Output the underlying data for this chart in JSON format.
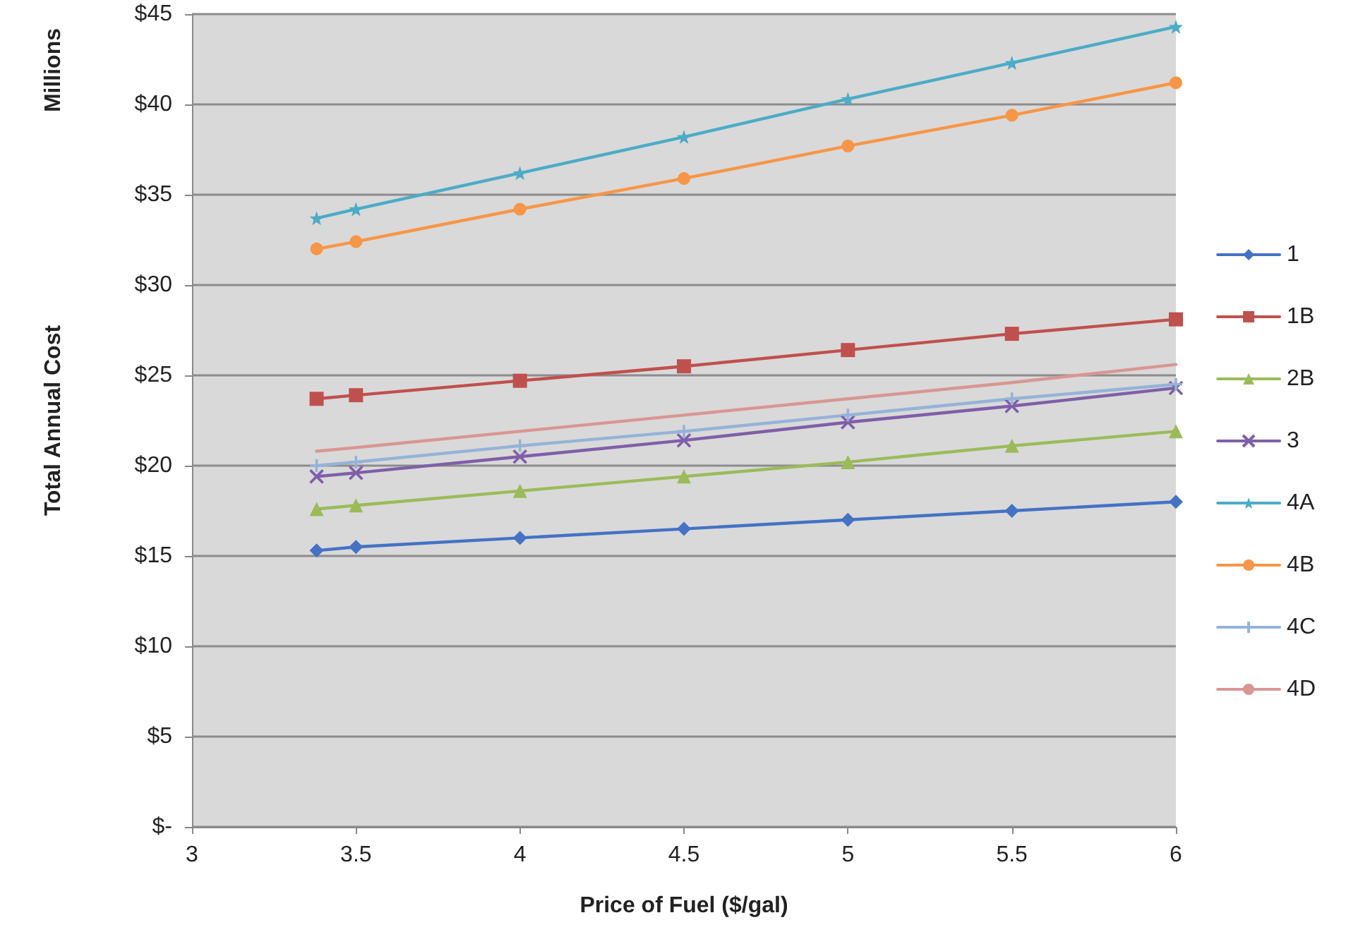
{
  "chart_data": {
    "type": "line",
    "xlabel": "Price of Fuel ($/gal)",
    "ylabel": "Total Annual Cost",
    "annotations": [
      "Millions"
    ],
    "x": [
      3.38,
      3.5,
      4,
      4.5,
      5,
      5.5,
      6
    ],
    "xlim": [
      3,
      6
    ],
    "xticks": [
      3,
      3.5,
      4,
      4.5,
      5,
      5.5,
      6
    ],
    "ylim": [
      0,
      45
    ],
    "yticks": [
      {
        "value": 0,
        "label": "$-"
      },
      {
        "value": 5,
        "label": "$5"
      },
      {
        "value": 10,
        "label": "$10"
      },
      {
        "value": 15,
        "label": "$15"
      },
      {
        "value": 20,
        "label": "$20"
      },
      {
        "value": 25,
        "label": "$25"
      },
      {
        "value": 30,
        "label": "$30"
      },
      {
        "value": 35,
        "label": "$35"
      },
      {
        "value": 40,
        "label": "$40"
      },
      {
        "value": 45,
        "label": "$45"
      }
    ],
    "grid": "y",
    "legend": "right",
    "line_style": "solid",
    "series": [
      {
        "name": "1",
        "color": "#4472c4",
        "marker": "diamond",
        "values": [
          15.3,
          15.5,
          16.0,
          16.5,
          17.0,
          17.5,
          18.0
        ]
      },
      {
        "name": "1B",
        "color": "#c0504d",
        "marker": "square",
        "values": [
          23.7,
          23.9,
          24.7,
          25.5,
          26.4,
          27.3,
          28.1
        ]
      },
      {
        "name": "2B",
        "color": "#9bbb59",
        "marker": "triangle",
        "values": [
          17.6,
          17.8,
          18.6,
          19.4,
          20.2,
          21.1,
          21.9
        ]
      },
      {
        "name": "3",
        "color": "#7f5fa8",
        "marker": "cross",
        "values": [
          19.4,
          19.6,
          20.5,
          21.4,
          22.4,
          23.3,
          24.3
        ]
      },
      {
        "name": "4A",
        "color": "#4bacc6",
        "marker": "star",
        "values": [
          33.7,
          34.2,
          36.2,
          38.2,
          40.3,
          42.3,
          44.3
        ]
      },
      {
        "name": "4B",
        "color": "#f79646",
        "marker": "circle",
        "values": [
          32.0,
          32.4,
          34.2,
          35.9,
          37.7,
          39.4,
          41.2
        ]
      },
      {
        "name": "4C",
        "color": "#95b3d7",
        "marker": "plus",
        "values": [
          20.0,
          20.2,
          21.1,
          21.9,
          22.8,
          23.7,
          24.5
        ]
      },
      {
        "name": "4D",
        "color": "#d99694",
        "marker": "none",
        "values": [
          20.8,
          21.0,
          21.9,
          22.8,
          23.7,
          24.6,
          25.6
        ]
      }
    ]
  }
}
